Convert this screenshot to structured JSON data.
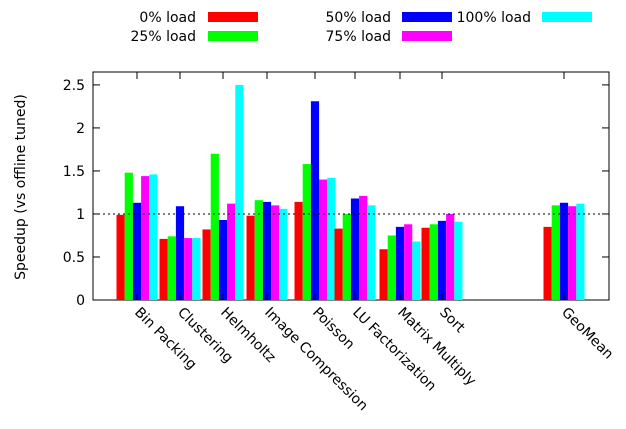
{
  "chart_data": {
    "type": "bar",
    "title": "",
    "xlabel": "",
    "ylabel": "Speedup (vs offline tuned)",
    "ylim": [
      0,
      2.65
    ],
    "yticks": [
      "0",
      "0.5",
      "1",
      "1.5",
      "2",
      "2.5"
    ],
    "reference_line": 1.0,
    "categories": [
      "Bin Packing",
      "Clustering",
      "Helmholtz",
      "Image Compression",
      "Poisson",
      "LU Factorization",
      "Matrix Multiply",
      "Sort",
      "GeoMean"
    ],
    "series": [
      {
        "name": "0% load",
        "color": "#ff0000",
        "values": [
          0.99,
          0.71,
          0.82,
          0.98,
          1.14,
          0.83,
          0.59,
          0.84,
          0.85
        ]
      },
      {
        "name": "25% load",
        "color": "#00ff00",
        "values": [
          1.48,
          0.74,
          1.7,
          1.16,
          1.58,
          1.0,
          0.75,
          0.88,
          1.1
        ]
      },
      {
        "name": "50% load",
        "color": "#0000ff",
        "values": [
          1.13,
          1.09,
          0.93,
          1.14,
          2.31,
          1.18,
          0.85,
          0.92,
          1.13
        ]
      },
      {
        "name": "75% load",
        "color": "#ff00ff",
        "values": [
          1.44,
          0.72,
          1.12,
          1.1,
          1.4,
          1.21,
          0.88,
          1.0,
          1.09
        ]
      },
      {
        "name": "100% load",
        "color": "#00ffff",
        "values": [
          1.46,
          0.72,
          2.5,
          1.06,
          1.42,
          1.1,
          0.68,
          0.91,
          1.12
        ]
      }
    ],
    "legend_position": "top"
  }
}
